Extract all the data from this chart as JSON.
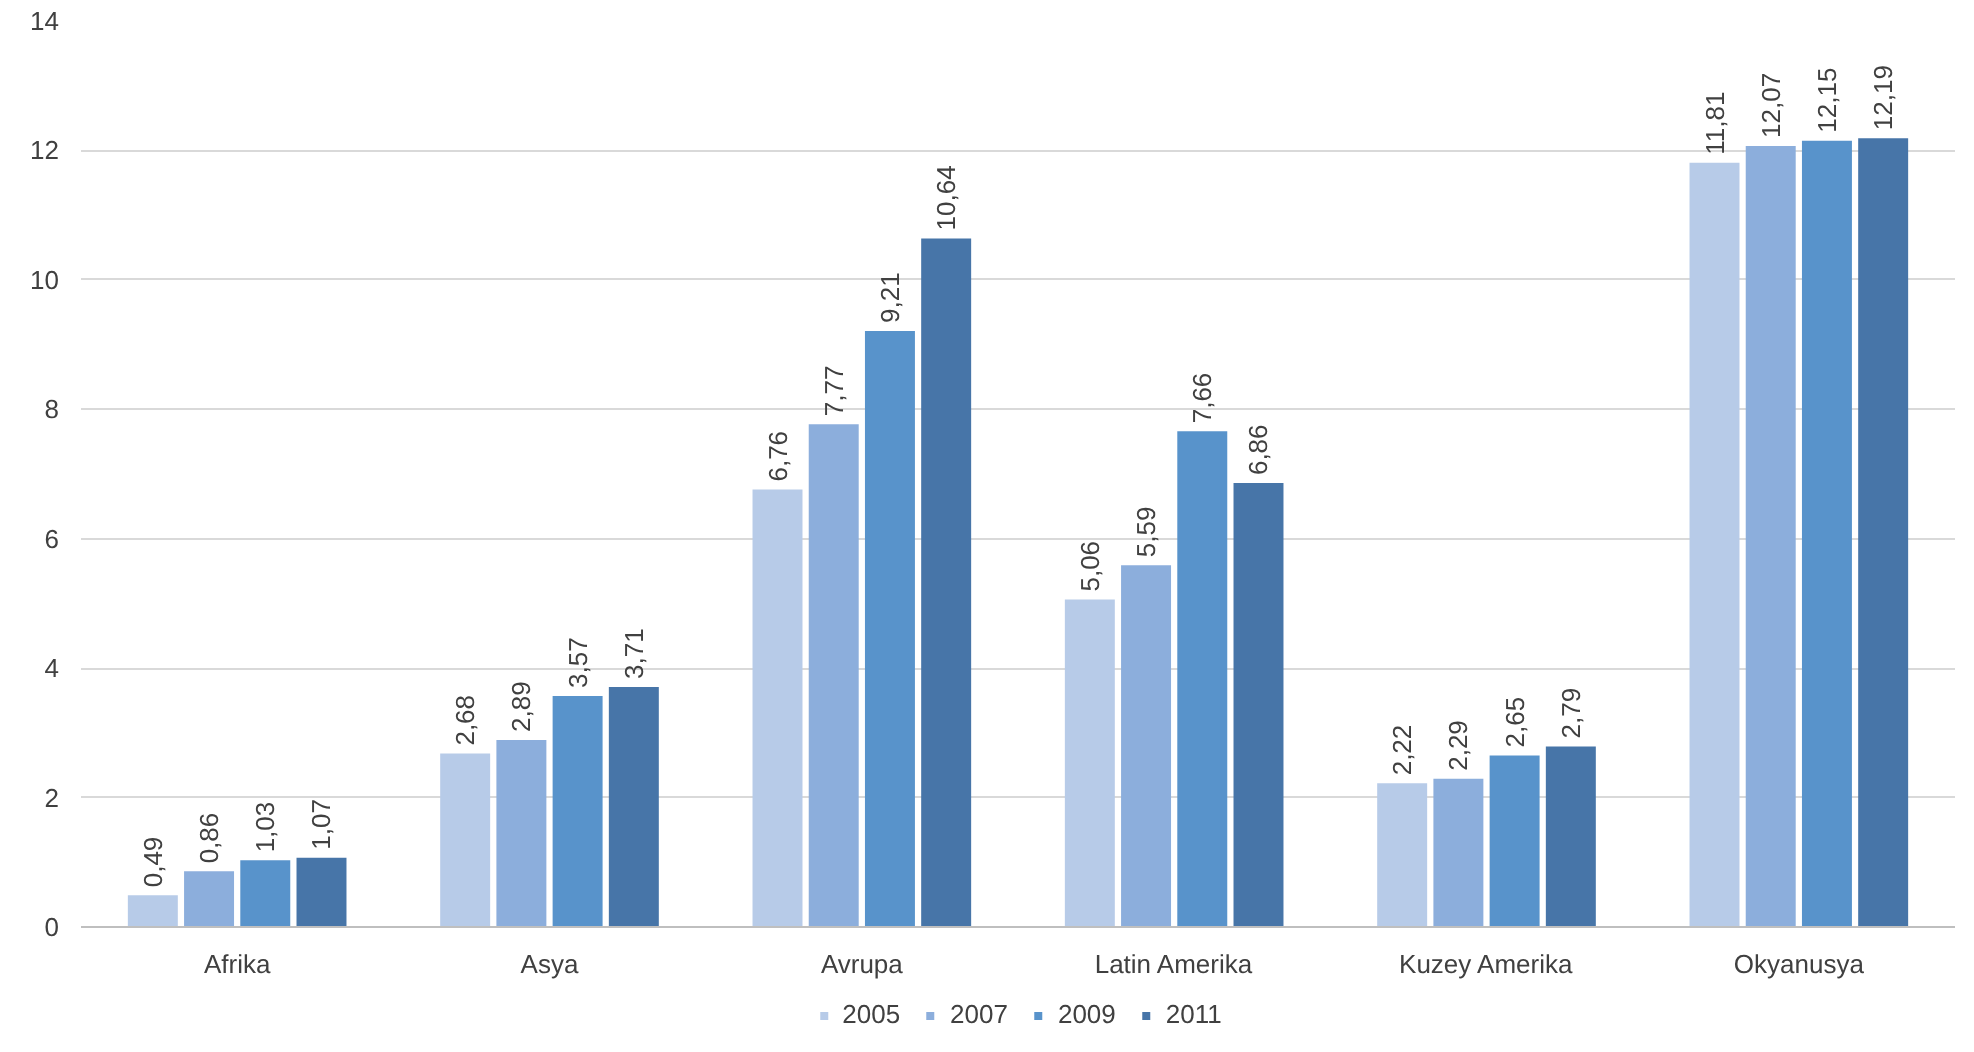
{
  "chart_data": {
    "type": "bar",
    "categories": [
      "Afrika",
      "Asya",
      "Avrupa",
      "Latin Amerika",
      "Kuzey Amerika",
      "Okyanusya"
    ],
    "series": [
      {
        "name": "2005",
        "color": "#b7cbe8",
        "values": [
          0.49,
          2.68,
          6.76,
          5.06,
          2.22,
          11.81
        ],
        "value_labels": [
          "0,49",
          "2,68",
          "6,76",
          "5,06",
          "2,22",
          "11,81"
        ]
      },
      {
        "name": "2007",
        "color": "#8caedc",
        "values": [
          0.86,
          2.89,
          7.77,
          5.59,
          2.29,
          12.07
        ],
        "value_labels": [
          "0,86",
          "2,89",
          "7,77",
          "5,59",
          "2,29",
          "12,07"
        ]
      },
      {
        "name": "2009",
        "color": "#5893cb",
        "values": [
          1.03,
          3.57,
          9.21,
          7.66,
          2.65,
          12.15
        ],
        "value_labels": [
          "1,03",
          "3,57",
          "9,21",
          "7,66",
          "2,65",
          "12,15"
        ]
      },
      {
        "name": "2011",
        "color": "#4775a8",
        "values": [
          1.07,
          3.71,
          10.64,
          6.86,
          2.79,
          12.19
        ],
        "value_labels": [
          "1,07",
          "3,71",
          "10,64",
          "6,86",
          "2,79",
          "12,19"
        ]
      }
    ],
    "ylim": [
      0,
      14
    ],
    "yticks": [
      0,
      2,
      4,
      6,
      8,
      10,
      12,
      14
    ],
    "grid": "y",
    "legend": "bottom"
  }
}
